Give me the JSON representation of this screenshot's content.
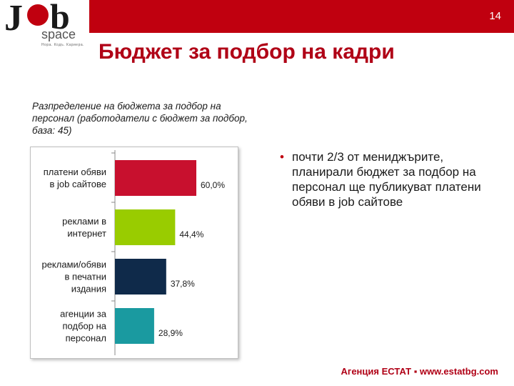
{
  "header": {
    "page_number": "14",
    "logo": {
      "text_j": "J",
      "text_b": "b",
      "text_space": "space",
      "tagline": "Hора. Кодъ. Каpиерa."
    }
  },
  "slide": {
    "title": "Бюджет за подбор на кадри",
    "bullet": "почти 2/3 от мениджърите, планирали бюджет за подбор на персонал ще публикуват платени обяви в job сайтове",
    "footer": "Агенция ЕСТАТ ▪ www.estatbg.com"
  },
  "chart_data": {
    "type": "bar",
    "orientation": "horizontal",
    "title": "Разпределение на бюджета за подбор на персонал (работодатели с бюджет за подбор, база: 45)",
    "categories": [
      [
        "платени обяви",
        "в job сайтове"
      ],
      [
        "реклами в",
        "интернет"
      ],
      [
        "реклами/обяви",
        "в печатни",
        "издания"
      ],
      [
        "агенции за",
        "подбор на",
        "персонал"
      ]
    ],
    "values": [
      60.0,
      44.4,
      37.8,
      28.9
    ],
    "value_labels": [
      "60,0%",
      "44,4%",
      "37,8%",
      "28,9%"
    ],
    "colors": [
      "#c8102e",
      "#99cc00",
      "#0f2a4a",
      "#1a9aa0"
    ],
    "xlim": [
      0,
      100
    ],
    "grid": false,
    "legend": "none"
  }
}
